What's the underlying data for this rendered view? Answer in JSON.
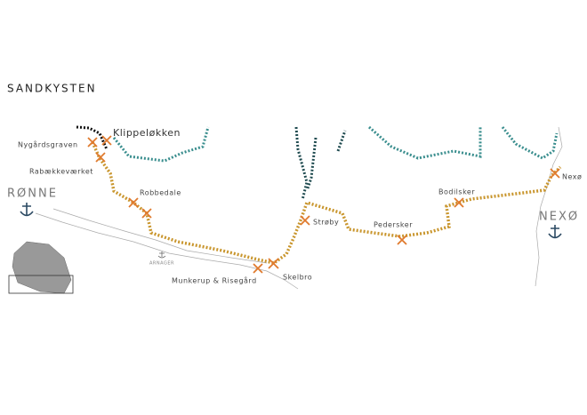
{
  "title": "SANDKYSTEN",
  "labels": {
    "klippeloekken": "Klippeløkken",
    "nygaardsgraven": "Nygårdsgraven",
    "rabaekkevaerket": "Rabækkeværket",
    "roenne": "RØNNE",
    "robbedale": "Robbedale",
    "arnager": "ARNAGER",
    "munkerup": "Munkerup & Risegård",
    "skelbro": "Skelbro",
    "stroeby": "Strøby",
    "pedersker": "Pedersker",
    "bodilsker": "Bodilsker",
    "nexoe_small": "Nexø",
    "nexoe_town": "NEXØ"
  }
}
